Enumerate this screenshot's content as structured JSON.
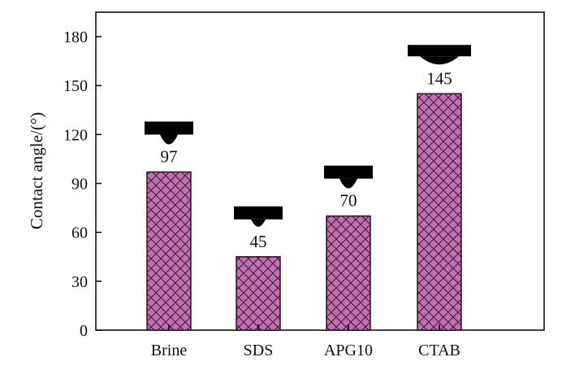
{
  "chart_data": {
    "type": "bar",
    "title": "",
    "xlabel": "",
    "ylabel": "Contact angle/(°)",
    "categories": [
      "Brine",
      "SDS",
      "APG10",
      "CTAB"
    ],
    "values": [
      97,
      45,
      70,
      145
    ],
    "data_labels": [
      "97",
      "45",
      "70",
      "145"
    ],
    "ylim": [
      0,
      195
    ],
    "yticks": [
      0,
      30,
      60,
      90,
      120,
      150,
      180
    ],
    "grid": false,
    "legend": "none",
    "bar_fill": "#c070b0",
    "bar_hatch": "crosshatch",
    "annotations": "droplet contact-angle images above each bar"
  }
}
